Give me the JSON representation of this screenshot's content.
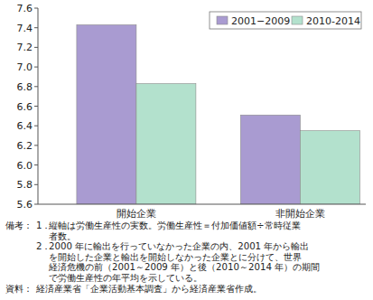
{
  "chart_data": {
    "type": "bar",
    "categories": [
      "開始企業",
      "非開始企業"
    ],
    "series": [
      {
        "name": "2001−2009",
        "color": "#a99bd1",
        "values": [
          7.43,
          6.51
        ]
      },
      {
        "name": "2010-2014",
        "color": "#b3e1cd",
        "values": [
          6.83,
          6.35
        ]
      }
    ],
    "ylim": [
      5.6,
      7.6
    ],
    "yticks": [
      5.6,
      5.8,
      {
        "value": 6,
        "label": "6.0"
      },
      6.2,
      6.4,
      6.6,
      6.8,
      {
        "value": 7,
        "label": "7.0"
      },
      7.2,
      7.4,
      7.6
    ],
    "grid": false,
    "legend": "top-right",
    "notes": {
      "label": "備考：",
      "items": [
        {
          "number": "1．",
          "lines": [
            "縦軸は労働生産性の実数。労働生産性＝付加価値額÷常時従業",
            "者数。"
          ]
        },
        {
          "number": "2．",
          "lines": [
            "2000 年に輸出を行っていなかった企業の内、2001 年から輸出",
            "を開始した企業と輸出を開始しなかった企業とに分けて、世界",
            "経済危機の前（2001～2009 年）と後（2010～2014 年）の期間",
            "で労働生産性の年平均を示している。"
          ]
        }
      ]
    },
    "source": {
      "label": "資料：",
      "text": "経済産業省「企業活動基本調査」から経済産業省作成。"
    }
  }
}
